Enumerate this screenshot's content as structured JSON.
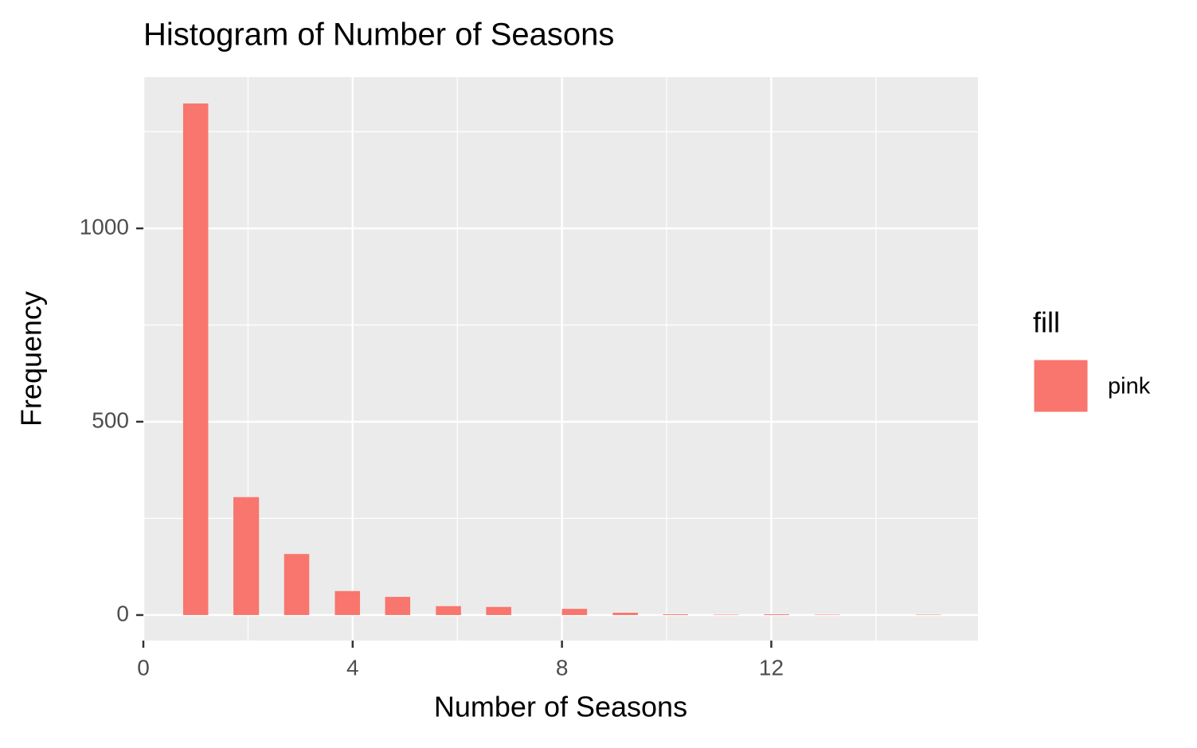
{
  "chart_data": {
    "type": "histogram",
    "title": "Histogram of Number of Seasons",
    "x_label": "Number of Seasons",
    "y_label": "Frequency",
    "legend_title": "fill",
    "bins": [
      0.76,
      1.24,
      1.72,
      2.21,
      2.69,
      3.17,
      3.66,
      4.14,
      4.62,
      5.1,
      5.59,
      6.07,
      6.55,
      7.03,
      7.52,
      8.0,
      8.48,
      8.97,
      9.45,
      9.93,
      10.41,
      10.9,
      11.38,
      11.86,
      12.34,
      12.83,
      13.31,
      13.79,
      14.28,
      14.76,
      15.24
    ],
    "series": [
      {
        "name": "pink",
        "color": "#f8766d",
        "values": [
          1323,
          0,
          305,
          0,
          158,
          0,
          62,
          0,
          47,
          0,
          23,
          0,
          21,
          0,
          0,
          16,
          0,
          6,
          0,
          2,
          0,
          1,
          0,
          2,
          0,
          1,
          0,
          0,
          0,
          1
        ]
      }
    ],
    "xlim": [
      0,
      15.95
    ],
    "ylim": [
      -66,
      1391
    ],
    "xticks": [
      0,
      4,
      8,
      12
    ],
    "yticks": [
      0,
      500,
      1000
    ],
    "x_minor_ticks": [
      2,
      6,
      10,
      14
    ],
    "y_minor_ticks": [
      250,
      750,
      1250
    ],
    "grid": true,
    "panel_color": "#ebebeb",
    "legend_position": "right"
  }
}
